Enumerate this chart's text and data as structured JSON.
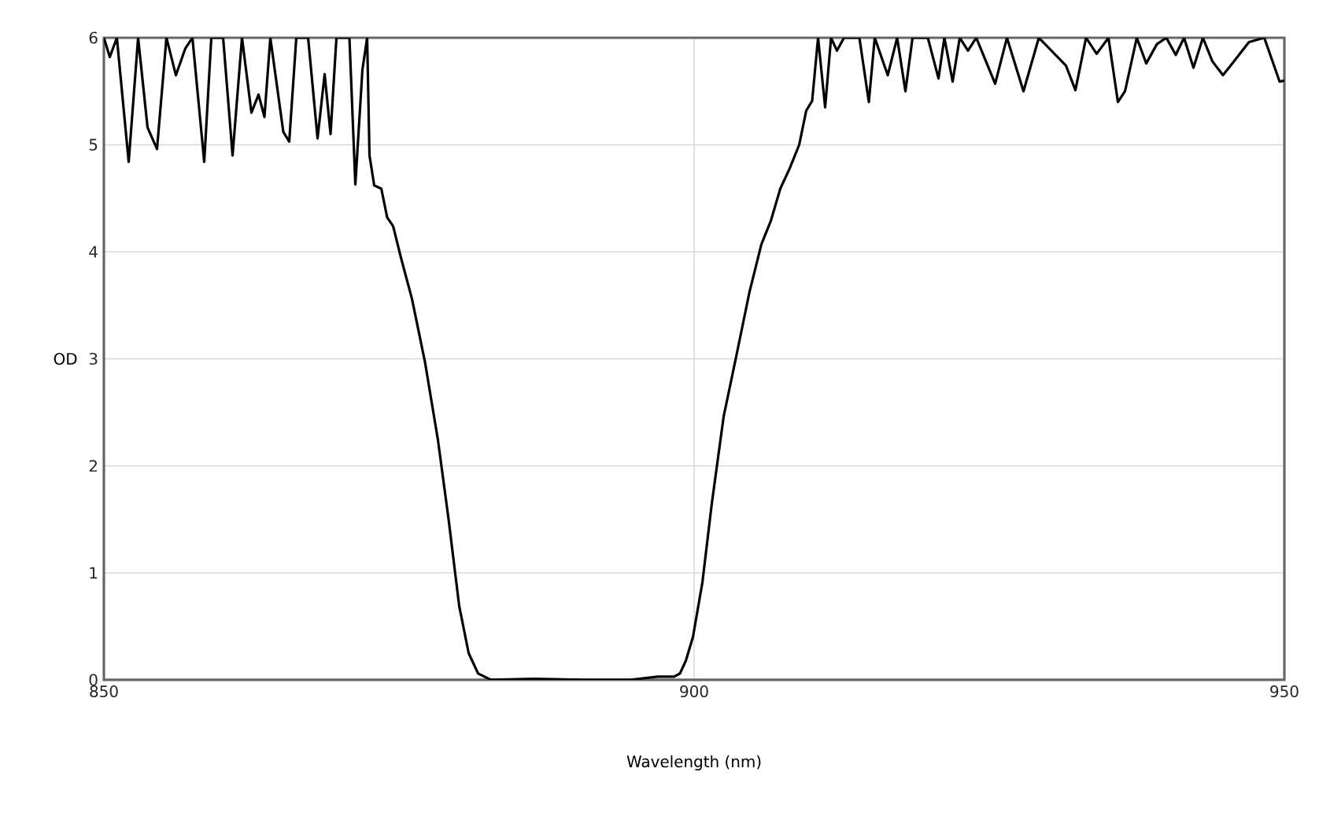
{
  "chart_data": {
    "type": "line",
    "xlabel": "Wavelength (nm)",
    "ylabel": "OD",
    "xlim": [
      850,
      950
    ],
    "ylim": [
      0,
      6
    ],
    "xticks": [
      850,
      900,
      950
    ],
    "yticks": [
      0,
      1,
      2,
      3,
      4,
      5,
      6
    ],
    "grid": true,
    "marker": "none",
    "line_style": "solid",
    "series": [
      {
        "color": "#000000",
        "x": [
          850,
          850.5,
          851.1,
          852.1,
          852.9,
          853.7,
          854.5,
          855.3,
          856.1,
          856.9,
          857.5,
          858.5,
          859.1,
          860.1,
          860.9,
          861.7,
          862.5,
          863.1,
          863.6,
          864.1,
          865.2,
          865.7,
          866.3,
          867.3,
          868.1,
          868.7,
          869.2,
          869.7,
          870.8,
          871.3,
          871.9,
          872.3,
          872.5,
          872.9,
          873.5,
          874.0,
          874.5,
          875.2,
          876.1,
          877.2,
          878.3,
          879.2,
          880.1,
          880.9,
          881.7,
          882.8,
          886.5,
          890.5,
          894.5,
          896.9,
          898.3,
          898.8,
          899.3,
          899.9,
          900.7,
          901.5,
          902.5,
          903.6,
          904.7,
          905.7,
          906.5,
          907.3,
          908.1,
          908.9,
          909.5,
          910.0,
          910.5,
          911.1,
          911.6,
          912.1,
          912.7,
          914.0,
          914.8,
          915.3,
          916.4,
          917.2,
          917.9,
          918.5,
          919.8,
          920.7,
          921.2,
          921.9,
          922.5,
          923.2,
          923.9,
          925.5,
          926.5,
          927.9,
          929.2,
          931.5,
          932.3,
          933.2,
          934.1,
          935.1,
          935.9,
          936.5,
          937.5,
          938.3,
          939.2,
          940.0,
          940.8,
          941.5,
          942.3,
          943.1,
          943.9,
          944.8,
          945.6,
          947.0,
          948.3,
          949.6,
          950
        ],
        "values": [
          6,
          5.82,
          6,
          4.84,
          6,
          5.16,
          4.96,
          6,
          5.65,
          5.9,
          6,
          4.84,
          6,
          6,
          4.9,
          6,
          5.3,
          5.47,
          5.26,
          6,
          5.12,
          5.03,
          6,
          6,
          5.06,
          5.66,
          5.1,
          6,
          6,
          4.63,
          5.7,
          6,
          4.9,
          4.62,
          4.59,
          4.32,
          4.24,
          3.93,
          3.56,
          2.97,
          2.24,
          1.5,
          0.69,
          0.25,
          0.06,
          0,
          0.01,
          0,
          0,
          0.03,
          0.03,
          0.06,
          0.18,
          0.4,
          0.91,
          1.65,
          2.46,
          3.04,
          3.63,
          4.07,
          4.29,
          4.59,
          4.78,
          5.0,
          5.32,
          5.41,
          6,
          5.35,
          6,
          5.88,
          6,
          6,
          5.4,
          6,
          5.65,
          6,
          5.5,
          6,
          6,
          5.62,
          6,
          5.59,
          6,
          5.88,
          6,
          5.57,
          6,
          5.5,
          6,
          5.74,
          5.51,
          6,
          5.85,
          6,
          5.4,
          5.5,
          6,
          5.76,
          5.94,
          6,
          5.84,
          6,
          5.72,
          6,
          5.78,
          5.65,
          5.76,
          5.96,
          6,
          5.59,
          5.6
        ]
      }
    ]
  }
}
